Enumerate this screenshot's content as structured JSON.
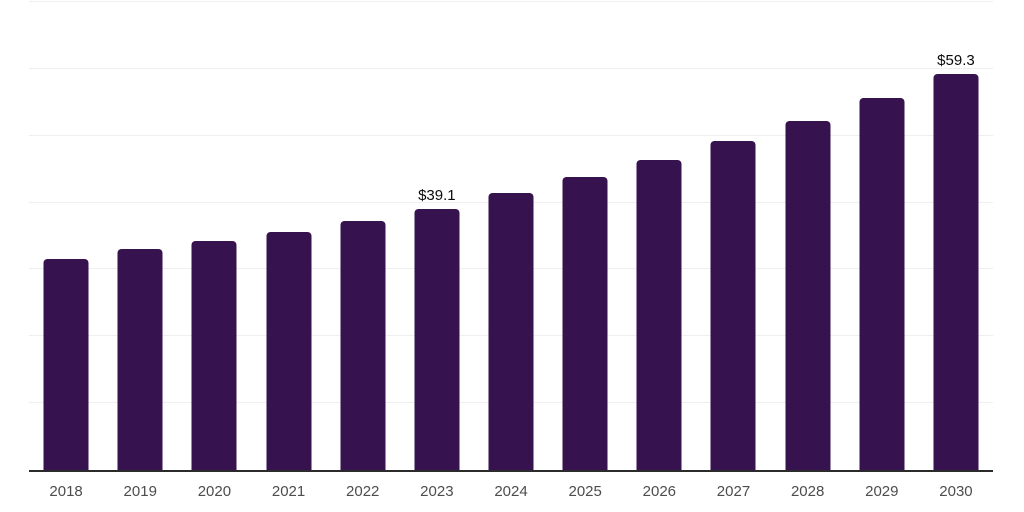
{
  "chart_data": {
    "type": "bar",
    "title": "",
    "xlabel": "",
    "ylabel": "",
    "categories": [
      "2018",
      "2019",
      "2020",
      "2021",
      "2022",
      "2023",
      "2024",
      "2025",
      "2026",
      "2027",
      "2028",
      "2029",
      "2030"
    ],
    "values": [
      31.5,
      33.1,
      34.2,
      35.6,
      37.3,
      39.1,
      41.5,
      43.8,
      46.3,
      49.2,
      52.2,
      55.6,
      59.3
    ],
    "value_labels": [
      "",
      "",
      "",
      "",
      "",
      "$39.1",
      "",
      "",
      "",
      "",
      "",
      "",
      "$59.3"
    ],
    "ylim": [
      0,
      70
    ],
    "gridline_step": 10,
    "grid": "horizontal-only",
    "legend": "none",
    "y_tick_labels_visible": false,
    "bar_color": "#36134e",
    "grid_color": "#efefef",
    "axis_color": "#2b2b2b",
    "tick_label_color": "#4d4d4d",
    "value_label_color": "#0b0b0b",
    "background_color": "#ffffff"
  }
}
